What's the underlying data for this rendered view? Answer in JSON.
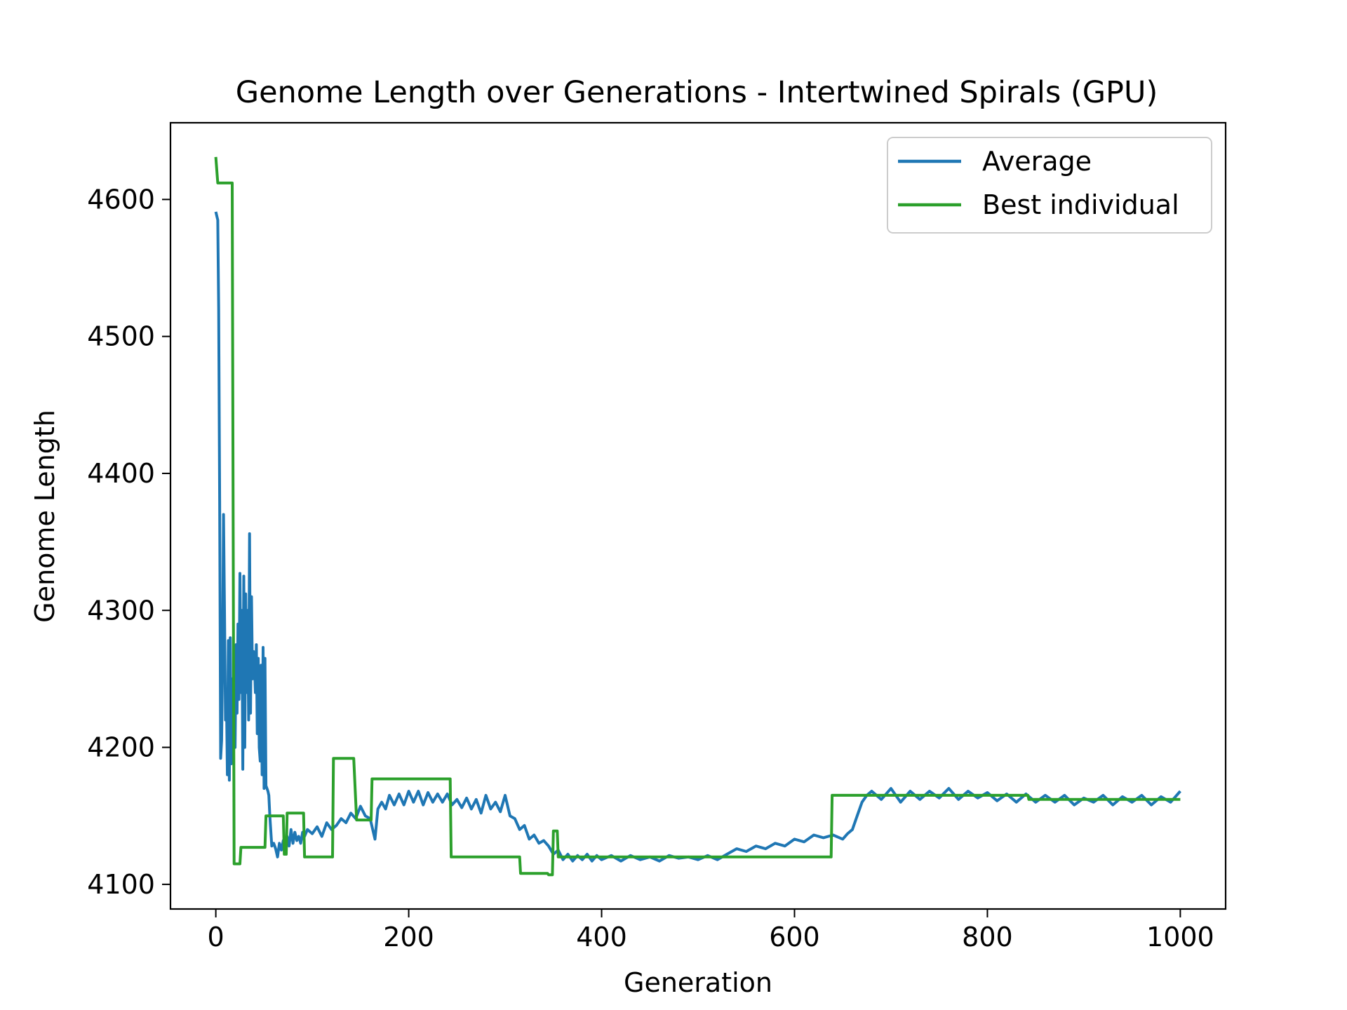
{
  "chart_data": {
    "type": "line",
    "title": "Genome Length over Generations - Intertwined Spirals (GPU)",
    "xlabel": "Generation",
    "ylabel": "Genome Length",
    "xlim": [
      -47,
      1047
    ],
    "ylim": [
      4082,
      4656
    ],
    "xticks": [
      0,
      200,
      400,
      600,
      800,
      1000
    ],
    "yticks": [
      4100,
      4200,
      4300,
      4400,
      4500,
      4600
    ],
    "xtick_labels": [
      "0",
      "200",
      "400",
      "600",
      "800",
      "1000"
    ],
    "ytick_labels": [
      "4100",
      "4200",
      "4300",
      "4400",
      "4500",
      "4600"
    ],
    "grid": false,
    "legend_position": "top-right",
    "series": [
      {
        "name": "Average",
        "color": "#1f77b4",
        "points": [
          [
            0,
            4591
          ],
          [
            2,
            4585
          ],
          [
            3,
            4520
          ],
          [
            4,
            4380
          ],
          [
            5,
            4192
          ],
          [
            6,
            4205
          ],
          [
            7,
            4260
          ],
          [
            8,
            4370
          ],
          [
            9,
            4300
          ],
          [
            10,
            4220
          ],
          [
            11,
            4240
          ],
          [
            12,
            4180
          ],
          [
            13,
            4278
          ],
          [
            14,
            4176
          ],
          [
            15,
            4280
          ],
          [
            16,
            4188
          ],
          [
            17,
            4250
          ],
          [
            18,
            4196
          ],
          [
            19,
            4240
          ],
          [
            20,
            4200
          ],
          [
            21,
            4275
          ],
          [
            22,
            4225
          ],
          [
            23,
            4290
          ],
          [
            24,
            4235
          ],
          [
            25,
            4327
          ],
          [
            26,
            4240
          ],
          [
            27,
            4300
          ],
          [
            28,
            4184
          ],
          [
            29,
            4325
          ],
          [
            30,
            4200
          ],
          [
            31,
            4312
          ],
          [
            32,
            4240
          ],
          [
            33,
            4300
          ],
          [
            34,
            4220
          ],
          [
            35,
            4356
          ],
          [
            36,
            4225
          ],
          [
            37,
            4310
          ],
          [
            38,
            4250
          ],
          [
            39,
            4270
          ],
          [
            40,
            4262
          ],
          [
            41,
            4240
          ],
          [
            42,
            4275
          ],
          [
            43,
            4210
          ],
          [
            44,
            4265
          ],
          [
            45,
            4200
          ],
          [
            46,
            4190
          ],
          [
            47,
            4260
          ],
          [
            48,
            4180
          ],
          [
            49,
            4273
          ],
          [
            50,
            4170
          ],
          [
            51,
            4265
          ],
          [
            52,
            4172
          ],
          [
            53,
            4170
          ],
          [
            54,
            4168
          ],
          [
            55,
            4165
          ],
          [
            56,
            4150
          ],
          [
            58,
            4128
          ],
          [
            60,
            4130
          ],
          [
            62,
            4126
          ],
          [
            64,
            4120
          ],
          [
            66,
            4130
          ],
          [
            68,
            4125
          ],
          [
            70,
            4132
          ],
          [
            72,
            4128
          ],
          [
            74,
            4135
          ],
          [
            76,
            4128
          ],
          [
            78,
            4140
          ],
          [
            80,
            4130
          ],
          [
            82,
            4138
          ],
          [
            84,
            4132
          ],
          [
            86,
            4135
          ],
          [
            88,
            4130
          ],
          [
            90,
            4138
          ],
          [
            92,
            4135
          ],
          [
            95,
            4140
          ],
          [
            100,
            4137
          ],
          [
            105,
            4142
          ],
          [
            110,
            4135
          ],
          [
            115,
            4145
          ],
          [
            120,
            4140
          ],
          [
            125,
            4143
          ],
          [
            130,
            4148
          ],
          [
            135,
            4145
          ],
          [
            140,
            4152
          ],
          [
            145,
            4148
          ],
          [
            150,
            4157
          ],
          [
            155,
            4150
          ],
          [
            160,
            4148
          ],
          [
            165,
            4133
          ],
          [
            168,
            4155
          ],
          [
            172,
            4160
          ],
          [
            176,
            4155
          ],
          [
            180,
            4165
          ],
          [
            185,
            4158
          ],
          [
            190,
            4166
          ],
          [
            195,
            4158
          ],
          [
            200,
            4168
          ],
          [
            205,
            4160
          ],
          [
            210,
            4168
          ],
          [
            215,
            4158
          ],
          [
            220,
            4167
          ],
          [
            225,
            4160
          ],
          [
            230,
            4166
          ],
          [
            235,
            4160
          ],
          [
            240,
            4166
          ],
          [
            245,
            4158
          ],
          [
            250,
            4162
          ],
          [
            255,
            4156
          ],
          [
            260,
            4163
          ],
          [
            265,
            4155
          ],
          [
            270,
            4162
          ],
          [
            275,
            4152
          ],
          [
            280,
            4165
          ],
          [
            285,
            4155
          ],
          [
            290,
            4160
          ],
          [
            295,
            4153
          ],
          [
            300,
            4165
          ],
          [
            305,
            4150
          ],
          [
            310,
            4148
          ],
          [
            315,
            4140
          ],
          [
            320,
            4143
          ],
          [
            325,
            4133
          ],
          [
            330,
            4136
          ],
          [
            335,
            4130
          ],
          [
            340,
            4132
          ],
          [
            345,
            4128
          ],
          [
            350,
            4122
          ],
          [
            355,
            4125
          ],
          [
            360,
            4118
          ],
          [
            365,
            4122
          ],
          [
            370,
            4117
          ],
          [
            375,
            4121
          ],
          [
            380,
            4118
          ],
          [
            385,
            4122
          ],
          [
            390,
            4117
          ],
          [
            395,
            4121
          ],
          [
            400,
            4118
          ],
          [
            410,
            4121
          ],
          [
            420,
            4117
          ],
          [
            430,
            4121
          ],
          [
            440,
            4118
          ],
          [
            450,
            4120
          ],
          [
            460,
            4117
          ],
          [
            470,
            4121
          ],
          [
            480,
            4119
          ],
          [
            490,
            4120
          ],
          [
            500,
            4118
          ],
          [
            510,
            4121
          ],
          [
            520,
            4118
          ],
          [
            530,
            4122
          ],
          [
            540,
            4126
          ],
          [
            550,
            4124
          ],
          [
            560,
            4128
          ],
          [
            570,
            4126
          ],
          [
            580,
            4130
          ],
          [
            590,
            4128
          ],
          [
            600,
            4133
          ],
          [
            610,
            4131
          ],
          [
            620,
            4136
          ],
          [
            630,
            4134
          ],
          [
            640,
            4136
          ],
          [
            650,
            4133
          ],
          [
            655,
            4137
          ],
          [
            660,
            4140
          ],
          [
            665,
            4150
          ],
          [
            670,
            4160
          ],
          [
            675,
            4165
          ],
          [
            680,
            4168
          ],
          [
            690,
            4162
          ],
          [
            700,
            4170
          ],
          [
            710,
            4160
          ],
          [
            720,
            4168
          ],
          [
            730,
            4162
          ],
          [
            740,
            4168
          ],
          [
            750,
            4163
          ],
          [
            760,
            4170
          ],
          [
            770,
            4162
          ],
          [
            780,
            4168
          ],
          [
            790,
            4163
          ],
          [
            800,
            4167
          ],
          [
            810,
            4161
          ],
          [
            820,
            4166
          ],
          [
            830,
            4160
          ],
          [
            840,
            4166
          ],
          [
            850,
            4160
          ],
          [
            860,
            4165
          ],
          [
            870,
            4160
          ],
          [
            880,
            4165
          ],
          [
            890,
            4158
          ],
          [
            900,
            4163
          ],
          [
            910,
            4160
          ],
          [
            920,
            4165
          ],
          [
            930,
            4158
          ],
          [
            940,
            4164
          ],
          [
            950,
            4160
          ],
          [
            960,
            4165
          ],
          [
            970,
            4158
          ],
          [
            980,
            4164
          ],
          [
            990,
            4160
          ],
          [
            1000,
            4168
          ]
        ]
      },
      {
        "name": "Best individual",
        "color": "#2ca02c",
        "points": [
          [
            0,
            4631
          ],
          [
            2,
            4612
          ],
          [
            17,
            4612
          ],
          [
            19,
            4115
          ],
          [
            25,
            4115
          ],
          [
            26,
            4127
          ],
          [
            51,
            4127
          ],
          [
            52,
            4150
          ],
          [
            70,
            4150
          ],
          [
            71,
            4122
          ],
          [
            73,
            4122
          ],
          [
            74,
            4152
          ],
          [
            91,
            4152
          ],
          [
            92,
            4120
          ],
          [
            121,
            4120
          ],
          [
            122,
            4192
          ],
          [
            143,
            4192
          ],
          [
            146,
            4147
          ],
          [
            161,
            4147
          ],
          [
            162,
            4177
          ],
          [
            243,
            4177
          ],
          [
            244,
            4120
          ],
          [
            315,
            4120
          ],
          [
            316,
            4108
          ],
          [
            344,
            4108
          ],
          [
            345,
            4107
          ],
          [
            349,
            4107
          ],
          [
            350,
            4139
          ],
          [
            354,
            4139
          ],
          [
            355,
            4120
          ],
          [
            638,
            4120
          ],
          [
            639,
            4165
          ],
          [
            842,
            4165
          ],
          [
            843,
            4162
          ],
          [
            1000,
            4162
          ]
        ]
      }
    ]
  }
}
